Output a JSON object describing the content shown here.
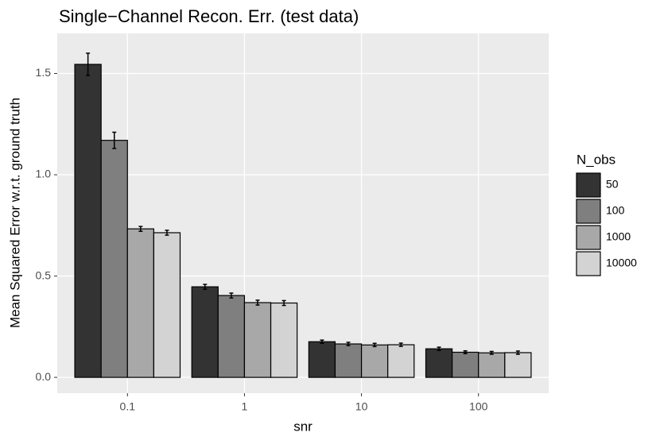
{
  "chart_data": {
    "type": "bar",
    "title": "Single−Channel Recon. Err. (test data)",
    "x_label": "snr",
    "y_label": "Mean Squared Error w.r.t. ground truth",
    "legend_title": "N_obs",
    "legend_position": "right",
    "categories": [
      "0.1",
      "1",
      "10",
      "100"
    ],
    "series": [
      {
        "name": "50",
        "color": "#333333",
        "values": [
          1.545,
          0.447,
          0.176,
          0.141
        ],
        "errors": [
          0.055,
          0.012,
          0.008,
          0.008
        ]
      },
      {
        "name": "100",
        "color": "#7f7f7f",
        "values": [
          1.17,
          0.404,
          0.165,
          0.124
        ],
        "errors": [
          0.04,
          0.012,
          0.008,
          0.007
        ]
      },
      {
        "name": "1000",
        "color": "#a8a8a8",
        "values": [
          0.733,
          0.369,
          0.16,
          0.121
        ],
        "errors": [
          0.012,
          0.012,
          0.008,
          0.007
        ]
      },
      {
        "name": "10000",
        "color": "#d3d3d3",
        "values": [
          0.714,
          0.367,
          0.161,
          0.122
        ],
        "errors": [
          0.012,
          0.012,
          0.008,
          0.008
        ]
      }
    ],
    "ylim": [
      -0.078,
      1.698
    ],
    "yticks": [
      {
        "value": 0,
        "label": "0.0"
      },
      0.5,
      {
        "value": 1,
        "label": "1.0"
      },
      1.5
    ],
    "grid": true
  }
}
